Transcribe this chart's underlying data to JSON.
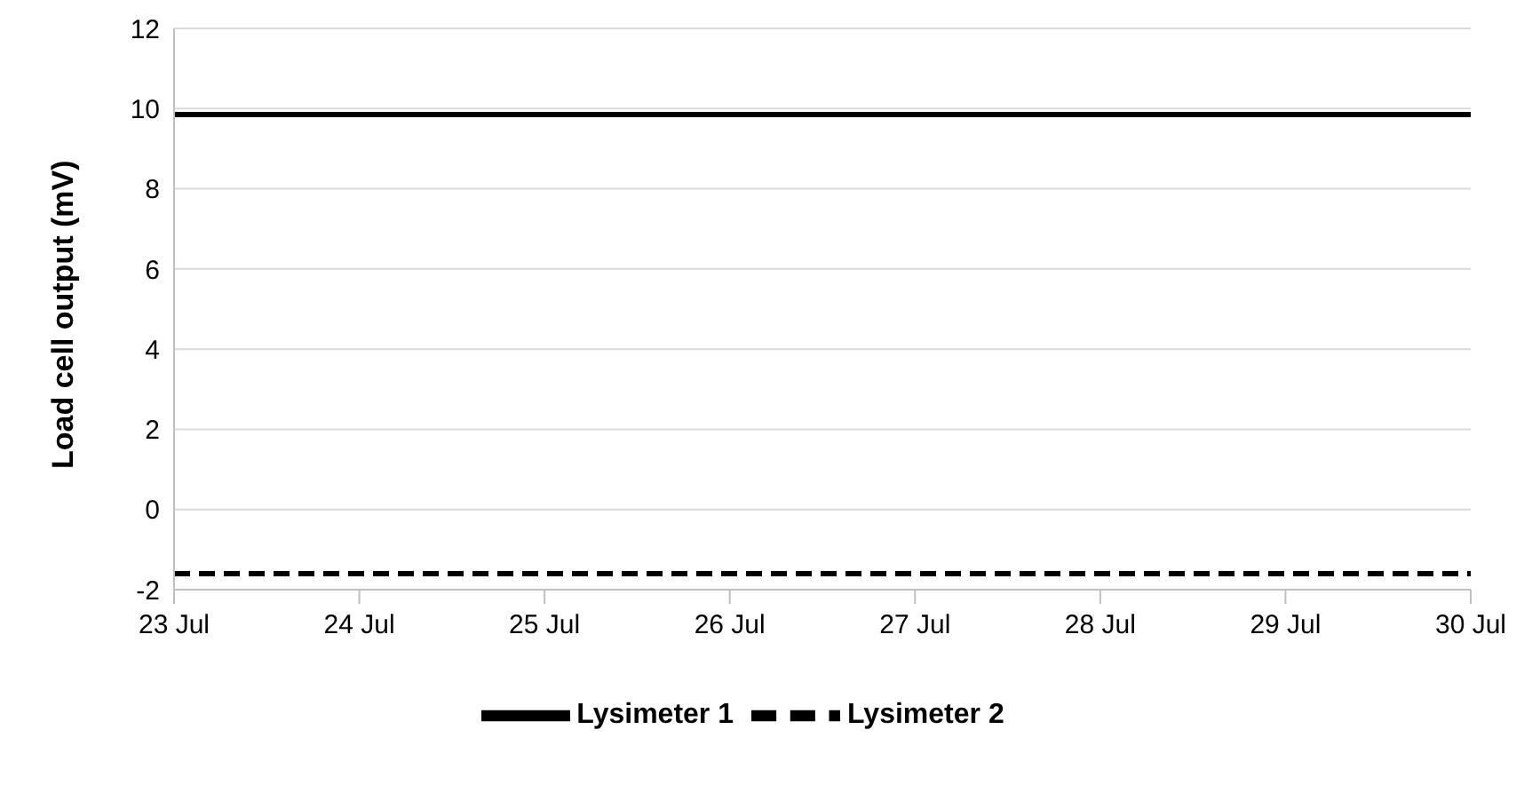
{
  "chart_data": {
    "type": "line",
    "ylabel": "Load cell output (mV)",
    "x": [
      "--07-23",
      "--07-30"
    ],
    "series": [
      {
        "name": "Lysimeter 1",
        "color": "#000000",
        "values": [
          9.85,
          9.85
        ],
        "line_style": "solid"
      },
      {
        "name": "Lysimeter 2",
        "color": "#000000",
        "values": [
          -1.6,
          -1.6
        ],
        "line_style": "dashed"
      }
    ],
    "xlim": [
      "--07-23",
      "--07-30"
    ],
    "xticks": [
      {
        "value": "--07-23",
        "label": "23 Jul"
      },
      {
        "value": "--07-24",
        "label": "24 Jul"
      },
      {
        "value": "--07-25",
        "label": "25 Jul"
      },
      {
        "value": "--07-26",
        "label": "26 Jul"
      },
      {
        "value": "--07-27",
        "label": "27 Jul"
      },
      {
        "value": "--07-28",
        "label": "28 Jul"
      },
      {
        "value": "--07-29",
        "label": "29 Jul"
      },
      {
        "value": "--07-30",
        "label": "30 Jul"
      }
    ],
    "ylim": [
      -2,
      12
    ],
    "yticks": [
      -2,
      0,
      2,
      4,
      6,
      8,
      10,
      12
    ],
    "grid": "y",
    "legend": "bottom",
    "marker": "none"
  }
}
